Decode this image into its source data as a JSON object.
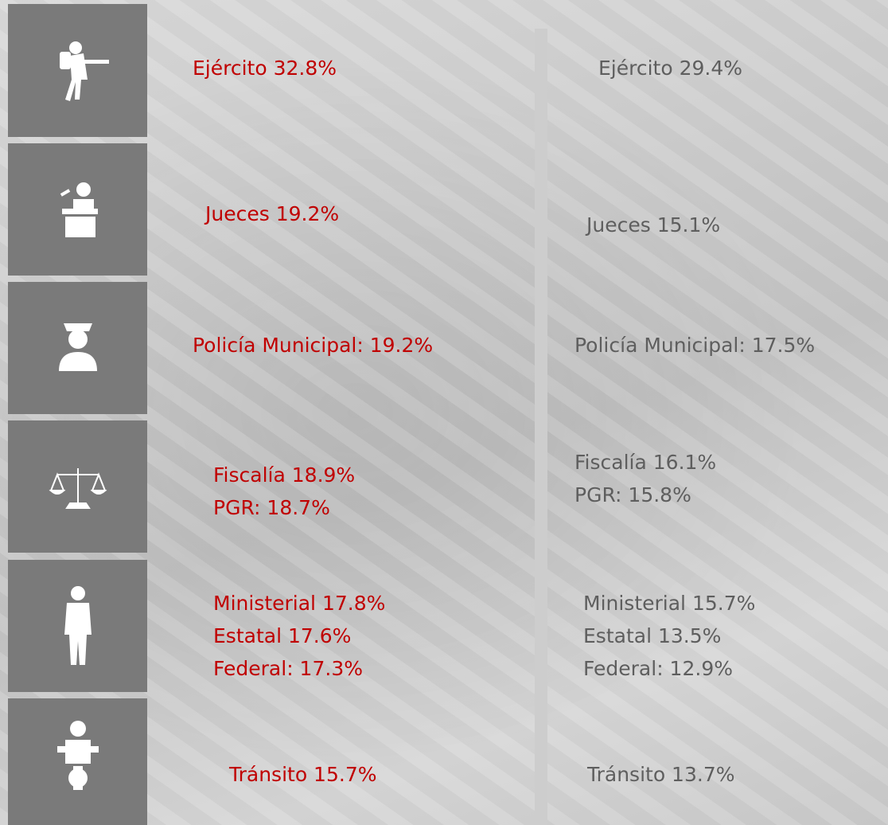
{
  "rows": [
    {
      "left": [
        "Ejército 32.8%"
      ],
      "right": [
        "Ejército 29.4%"
      ]
    },
    {
      "left": [
        "Jueces 19.2%"
      ],
      "right": [
        "Jueces 15.1%"
      ]
    },
    {
      "left": [
        "Policía Municipal: 19.2%"
      ],
      "right": [
        "Policía Municipal: 17.5%"
      ]
    },
    {
      "left": [
        "Fiscalía 18.9%",
        "PGR: 18.7%"
      ],
      "right": [
        "Fiscalía 16.1%",
        "PGR: 15.8%"
      ]
    },
    {
      "left": [
        "Ministerial 17.8%",
        "Estatal 17.6%",
        "Federal: 17.3%"
      ],
      "right": [
        "Ministerial 15.7%",
        "Estatal 13.5%",
        "Federal: 12.9%"
      ]
    },
    {
      "left": [
        "Tránsito 15.7%"
      ],
      "right": [
        "Tránsito 13.7%"
      ]
    }
  ]
}
